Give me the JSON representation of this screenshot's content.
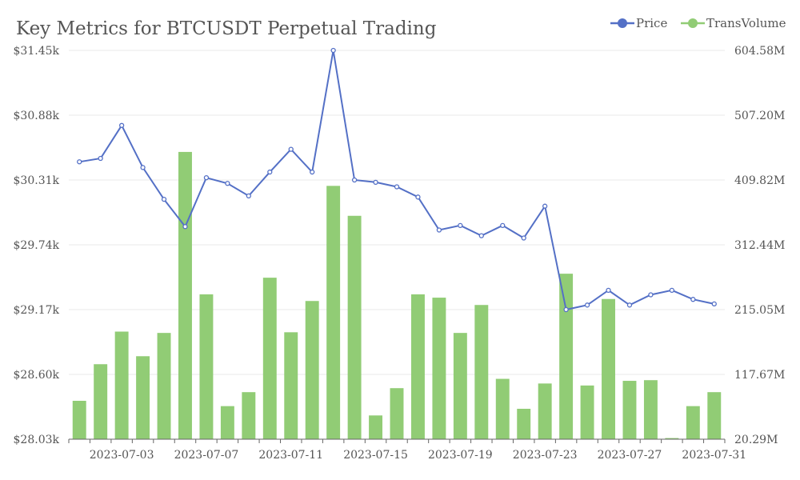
{
  "chart_data": {
    "type": "bar+line",
    "title": "Key Metrics for BTCUSDT Perpetual Trading",
    "legend": {
      "placement": "top-right",
      "entries": [
        {
          "name": "Price",
          "color": "#5470c6"
        },
        {
          "name": "TransVolume",
          "color": "#91cc75"
        }
      ]
    },
    "y_left": {
      "ticks": [
        "$28.03k",
        "$28.60k",
        "$29.17k",
        "$29.74k",
        "$30.31k",
        "$30.88k",
        "$31.45k"
      ],
      "range": [
        28.03,
        31.45
      ]
    },
    "y_right": {
      "ticks": [
        "20.29M",
        "117.67M",
        "215.05M",
        "312.44M",
        "409.82M",
        "507.20M",
        "604.58M"
      ],
      "range": [
        20.29,
        604.58
      ]
    },
    "x_tick_labels": [
      "2023-07-03",
      "2023-07-07",
      "2023-07-11",
      "2023-07-15",
      "2023-07-19",
      "2023-07-23",
      "2023-07-27",
      "2023-07-31"
    ],
    "categories": [
      "2023-07-01",
      "2023-07-02",
      "2023-07-03",
      "2023-07-04",
      "2023-07-05",
      "2023-07-06",
      "2023-07-07",
      "2023-07-08",
      "2023-07-09",
      "2023-07-10",
      "2023-07-11",
      "2023-07-12",
      "2023-07-13",
      "2023-07-14",
      "2023-07-15",
      "2023-07-16",
      "2023-07-17",
      "2023-07-18",
      "2023-07-19",
      "2023-07-20",
      "2023-07-21",
      "2023-07-22",
      "2023-07-23",
      "2023-07-24",
      "2023-07-25",
      "2023-07-26",
      "2023-07-27",
      "2023-07-28",
      "2023-07-29",
      "2023-07-30",
      "2023-07-31"
    ],
    "series": [
      {
        "name": "Price",
        "type": "line",
        "axis": "left",
        "color": "#5470c6",
        "values": [
          30.47,
          30.5,
          30.79,
          30.42,
          30.14,
          29.9,
          30.33,
          30.28,
          30.17,
          30.38,
          30.58,
          30.38,
          31.45,
          30.31,
          30.29,
          30.25,
          30.16,
          29.87,
          29.91,
          29.82,
          29.91,
          29.8,
          30.08,
          29.17,
          29.21,
          29.34,
          29.21,
          29.3,
          29.34,
          29.26,
          29.22
        ]
      },
      {
        "name": "TransVolume",
        "type": "bar",
        "axis": "right",
        "color": "#91cc75",
        "values": [
          78,
          133,
          182,
          145,
          180,
          452,
          238,
          70,
          91,
          263,
          181,
          228,
          401,
          356,
          56,
          97,
          238,
          233,
          180,
          222,
          111,
          66,
          104,
          269,
          101,
          231,
          108,
          109,
          22,
          70,
          91
        ]
      }
    ]
  }
}
